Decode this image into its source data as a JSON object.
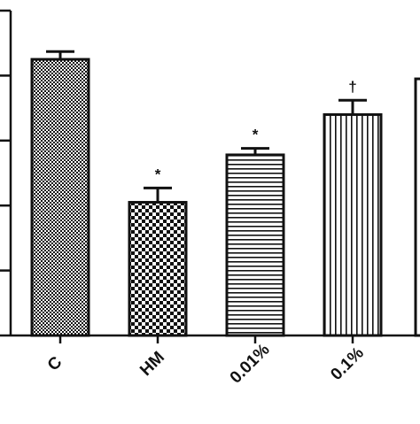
{
  "chart_data": {
    "type": "bar",
    "categories": [
      "C",
      "HM",
      "0.01%",
      "0.1%"
    ],
    "values": [
      4.25,
      2.05,
      2.78,
      3.4
    ],
    "errors": [
      0.12,
      0.22,
      0.1,
      0.22
    ],
    "significance": [
      "",
      "*",
      "*",
      "†"
    ],
    "patterns": [
      "fine-checker",
      "coarse-checker",
      "horizontal-lines",
      "vertical-lines"
    ],
    "ylim": [
      0,
      5
    ],
    "yticks": [
      0,
      1,
      2,
      3,
      4,
      5
    ],
    "partial_fifth_bar": {
      "value": 3.95,
      "pattern": "solid-black-edge"
    },
    "title": "",
    "xlabel": "",
    "ylabel": "",
    "grid": false,
    "colors": {
      "ink": "#111111",
      "fill": "#ffffff"
    }
  }
}
